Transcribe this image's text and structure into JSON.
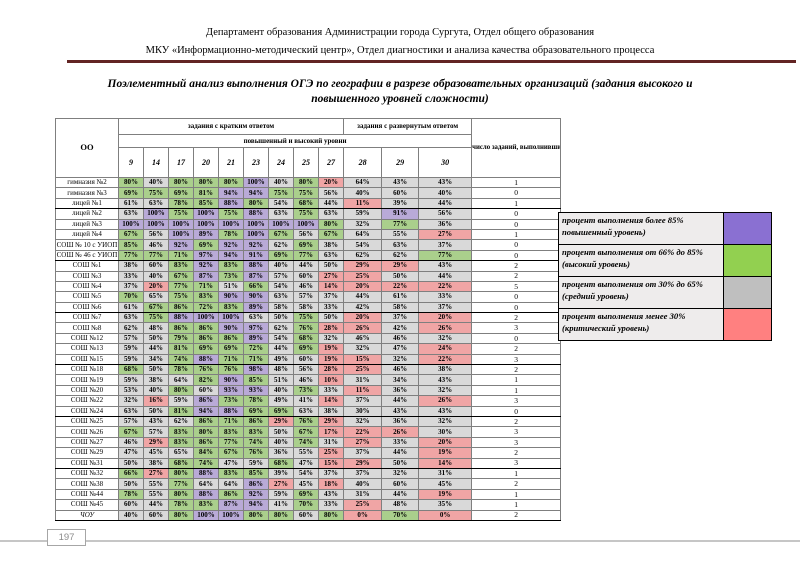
{
  "header": {
    "line1": "Департамент образования Администрации города Сургута, Отдел общего образования",
    "line2": "МКУ «Информационно-методический центр», Отдел диагностики и анализа качества образовательного процесса"
  },
  "title": "Поэлементный анализ выполнения ОГЭ по географии в разрезе образовательных организаций  (задания высокого и повышенного уровней сложности)",
  "palette": {
    "p": "#b9aad7",
    "g": "#aacf8c",
    "s": "#d9d9d9",
    "r": "#f0a5a5"
  },
  "table": {
    "oo_header": "ОО",
    "group_short": "задания с кратким ответом",
    "group_extended": "задания с развернутым ответом",
    "subheader": "повышенный и высокий уровни",
    "task_numbers": [
      "9",
      "14",
      "17",
      "20",
      "21",
      "23",
      "24",
      "25",
      "27",
      "28",
      "29",
      "30"
    ],
    "count_header": "число заданий, выполнивших на критическом уровне (высокий уровень)",
    "rows": [
      {
        "name": "гимназия №2",
        "values": [
          80,
          40,
          80,
          80,
          80,
          100,
          40,
          80,
          20,
          64,
          43,
          43
        ],
        "colors": "gsgggpsgrsss",
        "count": "1"
      },
      {
        "name": "гимназия №3",
        "values": [
          69,
          75,
          69,
          81,
          94,
          94,
          75,
          75,
          56,
          40,
          60,
          40
        ],
        "colors": "ggggppggssss",
        "count": "0"
      },
      {
        "name": "лицей №1",
        "values": [
          61,
          63,
          78,
          85,
          88,
          80,
          54,
          68,
          44,
          11,
          39,
          44
        ],
        "colors": "ssggpgsgsrss",
        "count": "1"
      },
      {
        "name": "лицей №2",
        "values": [
          63,
          100,
          75,
          100,
          75,
          88,
          63,
          75,
          63,
          59,
          91,
          56
        ],
        "colors": "spgpgpsgssps",
        "count": "0"
      },
      {
        "name": "лицей №3",
        "values": [
          100,
          100,
          100,
          100,
          100,
          100,
          100,
          100,
          80,
          32,
          77,
          36
        ],
        "colors": "ppppppppgsgs",
        "count": "0"
      },
      {
        "name": "лицей №4",
        "values": [
          67,
          56,
          100,
          89,
          78,
          100,
          67,
          56,
          67,
          64,
          55,
          27
        ],
        "colors": "gsppgpgsgssr",
        "count": "1"
      },
      {
        "name": "СОШ № 10 с УИОП",
        "values": [
          85,
          46,
          92,
          69,
          92,
          92,
          62,
          69,
          38,
          54,
          63,
          37
        ],
        "colors": "gspgppsgssss",
        "count": "0"
      },
      {
        "name": "СОШ № 46 с УИОП",
        "values": [
          77,
          77,
          71,
          97,
          94,
          91,
          69,
          77,
          63,
          62,
          62,
          77
        ],
        "colors": "gggpppggsssg",
        "count": "0"
      },
      {
        "name": "СОШ №1",
        "values": [
          38,
          60,
          83,
          92,
          83,
          88,
          40,
          44,
          50,
          29,
          29,
          43
        ],
        "colors": "ssgpgpsssrrs",
        "count": "2"
      },
      {
        "name": "СОШ №3",
        "values": [
          33,
          40,
          67,
          87,
          73,
          87,
          57,
          60,
          27,
          25,
          50,
          44
        ],
        "colors": "ssgpgpssrrss",
        "count": "2"
      },
      {
        "name": "СОШ №4",
        "values": [
          37,
          20,
          77,
          71,
          51,
          66,
          54,
          46,
          14,
          20,
          22,
          22
        ],
        "colors": "srggsgssrrrr",
        "count": "5"
      },
      {
        "name": "СОШ №5",
        "values": [
          70,
          65,
          75,
          83,
          90,
          90,
          63,
          57,
          37,
          44,
          61,
          33
        ],
        "colors": "gsggppssssss",
        "count": "0"
      },
      {
        "name": "СОШ №6",
        "values": [
          61,
          67,
          86,
          72,
          83,
          89,
          58,
          58,
          33,
          42,
          58,
          37
        ],
        "colors": "sggggpssssss",
        "count": "0"
      },
      {
        "name": "СОШ №7",
        "values": [
          63,
          75,
          88,
          100,
          100,
          63,
          50,
          75,
          50,
          20,
          37,
          20
        ],
        "colors": "sgpppssgsrsr",
        "count": "2"
      },
      {
        "name": "СОШ №8",
        "values": [
          62,
          48,
          86,
          86,
          90,
          97,
          62,
          76,
          28,
          26,
          42,
          26
        ],
        "colors": "ssggppsgrrsr",
        "count": "3"
      },
      {
        "name": "СОШ №12",
        "values": [
          57,
          50,
          79,
          86,
          86,
          89,
          54,
          68,
          32,
          46,
          46,
          32
        ],
        "colors": "ssgggpsgssss",
        "count": "0"
      },
      {
        "name": "СОШ №13",
        "values": [
          59,
          44,
          81,
          69,
          69,
          72,
          44,
          69,
          19,
          32,
          47,
          24
        ],
        "colors": "ssggggsgrssr",
        "count": "2"
      },
      {
        "name": "СОШ №15",
        "values": [
          59,
          34,
          74,
          88,
          71,
          71,
          49,
          60,
          19,
          15,
          32,
          22
        ],
        "colors": "ssgpggssrrsr",
        "count": "3"
      },
      {
        "name": "СОШ №18",
        "values": [
          68,
          50,
          78,
          76,
          76,
          98,
          48,
          56,
          28,
          25,
          46,
          38
        ],
        "colors": "gsgggpssrrss",
        "count": "2"
      },
      {
        "name": "СОШ №19",
        "values": [
          59,
          38,
          64,
          82,
          90,
          85,
          51,
          46,
          10,
          31,
          34,
          43
        ],
        "colors": "sssgpgssrsss",
        "count": "1"
      },
      {
        "name": "СОШ №20",
        "values": [
          53,
          40,
          80,
          60,
          93,
          93,
          40,
          73,
          33,
          11,
          36,
          32
        ],
        "colors": "ssgsppsgsrss",
        "count": "1"
      },
      {
        "name": "СОШ №22",
        "values": [
          32,
          16,
          59,
          86,
          73,
          78,
          49,
          41,
          14,
          37,
          44,
          26
        ],
        "colors": "srspggssrssr",
        "count": "3"
      },
      {
        "name": "СОШ №24",
        "values": [
          63,
          50,
          81,
          94,
          88,
          69,
          69,
          63,
          38,
          30,
          43,
          43
        ],
        "colors": "ssgppggsssss",
        "count": "0"
      },
      {
        "name": "СОШ №25",
        "values": [
          57,
          43,
          62,
          86,
          71,
          86,
          29,
          76,
          29,
          32,
          36,
          32
        ],
        "colors": "sssgggrgrsss",
        "count": "2"
      },
      {
        "name": "СОШ №26",
        "values": [
          67,
          57,
          83,
          80,
          83,
          83,
          50,
          67,
          17,
          22,
          26,
          30
        ],
        "colors": "gsggggsgrrrs",
        "count": "3"
      },
      {
        "name": "СОШ №27",
        "values": [
          46,
          29,
          83,
          86,
          77,
          74,
          40,
          74,
          31,
          27,
          33,
          20
        ],
        "colors": "srggggsgsrsr",
        "count": "3"
      },
      {
        "name": "СОШ №29",
        "values": [
          47,
          45,
          65,
          84,
          67,
          76,
          36,
          55,
          25,
          37,
          44,
          19
        ],
        "colors": "sssgggssrssr",
        "count": "2"
      },
      {
        "name": "СОШ №31",
        "values": [
          50,
          38,
          68,
          74,
          47,
          59,
          68,
          47,
          15,
          29,
          50,
          14
        ],
        "colors": "ssggssgsrrsr",
        "count": "3"
      },
      {
        "name": "СОШ №32",
        "values": [
          66,
          27,
          80,
          88,
          83,
          85,
          39,
          54,
          37,
          37,
          32,
          31
        ],
        "colors": "grgpggssssss",
        "count": "1"
      },
      {
        "name": "СОШ №38",
        "values": [
          50,
          55,
          77,
          64,
          64,
          86,
          27,
          45,
          18,
          40,
          60,
          45
        ],
        "colors": "ssgssprsrsss",
        "count": "2"
      },
      {
        "name": "СОШ №44",
        "values": [
          78,
          55,
          80,
          88,
          86,
          92,
          59,
          69,
          43,
          31,
          44,
          19
        ],
        "colors": "gsgpgpsgsssr",
        "count": "1"
      },
      {
        "name": "СОШ №45",
        "values": [
          60,
          44,
          78,
          83,
          87,
          94,
          41,
          70,
          33,
          25,
          48,
          35
        ],
        "colors": "ssggppsgsrss",
        "count": "1"
      },
      {
        "name": "ЧОУ",
        "values": [
          40,
          60,
          80,
          100,
          100,
          80,
          80,
          60,
          80,
          0,
          70,
          0
        ],
        "colors": "ssgppggsgrgr",
        "count": "2"
      }
    ]
  },
  "legend": {
    "items": [
      {
        "text": "процент выполнения более 85% повышенный уровень)",
        "color": "#8a70d2"
      },
      {
        "text": "процент выполнения от 66% до 85% (высокий уровень)",
        "color": "#92d050"
      },
      {
        "text": "процент выполнения от 30% до 65% (средний уровень)",
        "color": "#bfbfbf"
      },
      {
        "text": "процент выполнения менее 30% (критический уровень)",
        "color": "#ff8080"
      }
    ]
  },
  "footer": {
    "page_number": "197"
  }
}
